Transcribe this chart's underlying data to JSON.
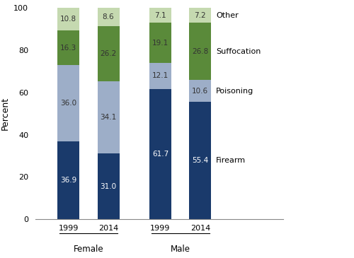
{
  "groups": [
    "Female",
    "Male"
  ],
  "years": [
    "1999",
    "2014"
  ],
  "categories": [
    "Firearm",
    "Poisoning",
    "Suffocation",
    "Other"
  ],
  "colors": [
    "#1a3a6b",
    "#9daec8",
    "#5a8a3a",
    "#c5d9b0"
  ],
  "values": {
    "Female": {
      "1999": [
        36.9,
        36.0,
        16.3,
        10.8
      ],
      "2014": [
        31.0,
        34.1,
        26.2,
        8.6
      ]
    },
    "Male": {
      "1999": [
        61.7,
        12.1,
        19.1,
        7.1
      ],
      "2014": [
        55.4,
        10.6,
        26.8,
        7.2
      ]
    }
  },
  "ylabel": "Percent",
  "ylim": [
    0,
    100
  ],
  "yticks": [
    0,
    20,
    40,
    60,
    80,
    100
  ],
  "bar_width": 0.55,
  "text_color_light": "#ffffff",
  "text_color_dark": "#333333",
  "fontsize_bar": 7.5,
  "fontsize_tick": 8,
  "fontsize_legend": 8,
  "fontsize_ylabel": 9,
  "fontsize_group": 8.5
}
